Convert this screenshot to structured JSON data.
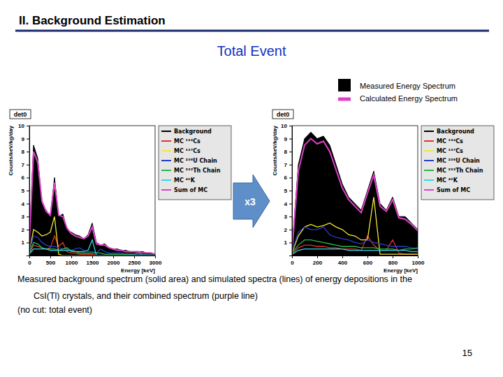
{
  "page": {
    "header": "II. Background Estimation",
    "subtitle": "Total Event",
    "key": [
      {
        "name": "Measured Energy Spectrum",
        "color": "#000000",
        "marker": "square"
      },
      {
        "name": "Calculated Energy Spectrum",
        "color": "#e040c8",
        "marker": "line"
      }
    ],
    "arrow_label": "x3",
    "caption": [
      "Measured background spectrum (solid area) and simulated spectra (lines) of energy depositions in the",
      "CsI(Tl) crystals, and their combined spectrum (purple line)",
      "(no cut: total event)"
    ],
    "page_number": "15"
  },
  "chart_data": [
    {
      "type": "line",
      "title": "det0",
      "x_label": "Energy [keV]",
      "y_label": "Counts/keV/kg/day",
      "legend": "right",
      "xlim": [
        0,
        3000
      ],
      "xticks": [
        0,
        500,
        1000,
        1500,
        2000,
        2500,
        3000
      ],
      "ylim": [
        0,
        10
      ],
      "yticks": [
        1,
        2,
        3,
        4,
        5,
        6,
        7,
        8,
        9,
        10
      ],
      "x": [
        0,
        100,
        200,
        300,
        400,
        500,
        600,
        700,
        800,
        900,
        1000,
        1100,
        1200,
        1300,
        1400,
        1500,
        1600,
        1700,
        1800,
        1900,
        2000,
        2100,
        2200,
        2300,
        2400,
        2500,
        2600,
        2700,
        2800,
        2900,
        3000
      ],
      "series": [
        {
          "name": "Background",
          "type": "area",
          "color": "#000000",
          "values": [
            1.0,
            8.5,
            7.5,
            4.0,
            3.5,
            3.0,
            6.0,
            3.0,
            3.2,
            2.0,
            1.8,
            1.6,
            1.5,
            1.3,
            1.6,
            2.5,
            1.0,
            0.8,
            0.9,
            0.6,
            0.5,
            0.5,
            0.4,
            0.4,
            0.3,
            0.3,
            0.3,
            0.3,
            0.2,
            0.2,
            0.1
          ]
        },
        {
          "name": "MC ¹³⁴Cs",
          "type": "line",
          "color": "#e8302a",
          "values": [
            0.1,
            0.8,
            0.7,
            0.6,
            0.5,
            0.6,
            1.5,
            0.7,
            1.0,
            0.3,
            0.2,
            0.2,
            0.1,
            0.1,
            0.1,
            0.1,
            0,
            0,
            0,
            0,
            0,
            0,
            0,
            0,
            0,
            0,
            0,
            0,
            0,
            0,
            0
          ]
        },
        {
          "name": "MC ¹³⁷Cs",
          "type": "line",
          "color": "#f2e830",
          "values": [
            0.2,
            2.0,
            1.8,
            1.5,
            1.6,
            1.8,
            3.0,
            0.1,
            0,
            0,
            0,
            0,
            0,
            0,
            0,
            0,
            0,
            0,
            0,
            0,
            0,
            0,
            0,
            0,
            0,
            0,
            0,
            0,
            0,
            0,
            0
          ]
        },
        {
          "name": "MC ²³⁸U Chain",
          "type": "line",
          "color": "#2a3cc8",
          "values": [
            0.3,
            1.5,
            1.4,
            1.0,
            0.8,
            0.7,
            0.7,
            0.6,
            0.5,
            0.5,
            0.4,
            0.5,
            0.6,
            0.4,
            0.3,
            0.3,
            0.2,
            0.5,
            0.3,
            0.2,
            0.2,
            0.2,
            0.2,
            0.1,
            0.1,
            0.1,
            0.1,
            0.05,
            0.05,
            0.05,
            0
          ]
        },
        {
          "name": "MC ²³²Th Chain",
          "type": "line",
          "color": "#2ab84a",
          "values": [
            0.2,
            1.0,
            0.9,
            0.6,
            0.5,
            0.5,
            0.5,
            0.4,
            0.5,
            0.6,
            0.3,
            0.3,
            0.2,
            0.2,
            0.2,
            0.2,
            0.2,
            0.2,
            0.1,
            0.1,
            0.1,
            0.1,
            0.1,
            0.1,
            0.1,
            0.1,
            0.2,
            0.05,
            0.05,
            0.05,
            0
          ]
        },
        {
          "name": "MC ⁴⁰K",
          "type": "line",
          "color": "#30d8e8",
          "values": [
            0.1,
            0.5,
            0.5,
            0.5,
            0.5,
            0.4,
            0.4,
            0.4,
            0.4,
            0.4,
            0.4,
            0.3,
            0.3,
            0.3,
            0.4,
            1.2,
            0,
            0,
            0,
            0,
            0,
            0,
            0,
            0,
            0,
            0,
            0,
            0,
            0,
            0,
            0
          ]
        },
        {
          "name": "Sum of MC",
          "type": "line",
          "color": "#e040c8",
          "values": [
            0.9,
            8.0,
            7.2,
            4.2,
            3.4,
            3.1,
            5.6,
            3.1,
            3.0,
            2.1,
            1.7,
            1.5,
            1.4,
            1.3,
            1.5,
            2.2,
            0.9,
            0.8,
            0.8,
            0.6,
            0.5,
            0.4,
            0.4,
            0.3,
            0.3,
            0.3,
            0.3,
            0.2,
            0.2,
            0.2,
            0.1
          ]
        }
      ]
    },
    {
      "type": "line",
      "title": "det0",
      "x_label": "Energy [keV]",
      "y_label": "Counts/keV/kg/day",
      "legend": "right",
      "xlim": [
        0,
        1000
      ],
      "xticks": [
        0,
        200,
        400,
        600,
        800,
        1000
      ],
      "ylim": [
        0,
        10
      ],
      "yticks": [
        1,
        2,
        3,
        4,
        5,
        6,
        7,
        8,
        9,
        10
      ],
      "x": [
        0,
        50,
        100,
        150,
        200,
        250,
        300,
        350,
        400,
        450,
        500,
        550,
        600,
        650,
        700,
        750,
        800,
        850,
        900,
        950,
        1000
      ],
      "series": [
        {
          "name": "Background",
          "type": "area",
          "color": "#000000",
          "values": [
            0.5,
            7.0,
            9.0,
            9.5,
            9.0,
            9.2,
            8.5,
            7.0,
            5.5,
            4.5,
            4.0,
            3.5,
            5.0,
            6.5,
            4.0,
            3.5,
            4.5,
            3.0,
            3.0,
            2.5,
            2.0
          ]
        },
        {
          "name": "MC ¹³⁴Cs",
          "type": "line",
          "color": "#e8302a",
          "values": [
            0.1,
            0.6,
            0.8,
            0.8,
            0.7,
            0.7,
            0.6,
            0.6,
            0.5,
            0.5,
            0.5,
            0.4,
            1.5,
            0.8,
            0.4,
            0.4,
            1.2,
            0.2,
            0.1,
            0.1,
            0.1
          ]
        },
        {
          "name": "MC ¹³⁷Cs",
          "type": "line",
          "color": "#f2e830",
          "values": [
            0.2,
            1.5,
            2.2,
            2.4,
            2.2,
            2.3,
            2.5,
            2.2,
            2.0,
            1.6,
            1.5,
            1.2,
            1.2,
            4.5,
            0.1,
            0.1,
            0.1,
            0.1,
            0.1,
            0.1,
            0.1
          ]
        },
        {
          "name": "MC ²³⁸U Chain",
          "type": "line",
          "color": "#2a3cc8",
          "values": [
            0.3,
            1.8,
            2.2,
            2.0,
            2.0,
            2.2,
            1.6,
            1.4,
            1.3,
            1.2,
            1.0,
            0.9,
            1.2,
            1.0,
            0.9,
            0.8,
            0.7,
            0.7,
            0.7,
            0.6,
            0.5
          ]
        },
        {
          "name": "MC ²³²Th Chain",
          "type": "line",
          "color": "#2ab84a",
          "values": [
            0.2,
            0.8,
            1.2,
            1.2,
            1.1,
            1.0,
            0.9,
            0.8,
            0.7,
            0.7,
            0.7,
            0.6,
            0.6,
            0.6,
            0.5,
            0.5,
            0.5,
            0.4,
            0.5,
            0.5,
            0.6
          ]
        },
        {
          "name": "MC ⁴⁰K",
          "type": "line",
          "color": "#30d8e8",
          "values": [
            0.1,
            0.4,
            0.5,
            0.5,
            0.5,
            0.5,
            0.5,
            0.5,
            0.5,
            0.4,
            0.4,
            0.4,
            0.4,
            0.4,
            0.4,
            0.4,
            0.4,
            0.4,
            0.4,
            0.3,
            0.3
          ]
        },
        {
          "name": "Sum of MC",
          "type": "line",
          "color": "#e040c8",
          "values": [
            0.4,
            6.5,
            8.5,
            9.0,
            8.6,
            8.8,
            8.0,
            6.6,
            5.2,
            4.3,
            3.8,
            3.3,
            4.8,
            6.2,
            3.8,
            3.4,
            4.3,
            2.9,
            2.8,
            2.4,
            1.9
          ]
        }
      ]
    }
  ]
}
